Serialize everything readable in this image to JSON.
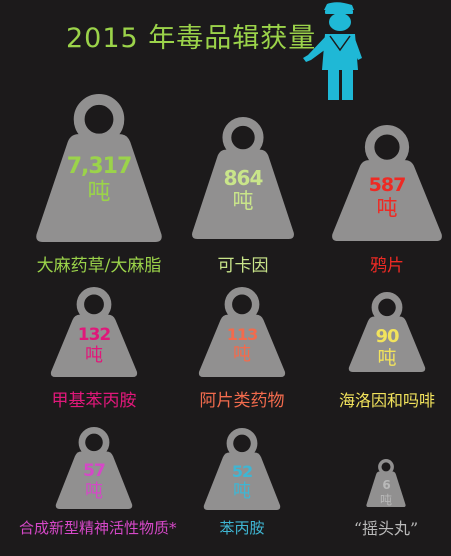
{
  "title": "2015 年毒品辑获量",
  "unit": "吨",
  "colors": {
    "background": "#1c1a1b",
    "weight": "#919090",
    "title": "#9bd34a",
    "officer": "#1fb8d6"
  },
  "icons": {
    "officer": "police-officer-icon",
    "weight": "weight-icon"
  },
  "items": [
    {
      "value": "7,317",
      "label": "大麻药草/大麻脂",
      "color": "#9bd34a"
    },
    {
      "value": "864",
      "label": "可卡因",
      "color": "#c9e58a"
    },
    {
      "value": "587",
      "label": "鸦片",
      "color": "#ee2a24"
    },
    {
      "value": "132",
      "label": "甲基苯丙胺",
      "color": "#e0187a"
    },
    {
      "value": "113",
      "label": "阿片类药物",
      "color": "#f26b4d"
    },
    {
      "value": "90",
      "label": "海洛因和吗啡",
      "color": "#f2e35c"
    },
    {
      "value": "57",
      "label": "合成新型精神活性物质*",
      "color": "#d548c7"
    },
    {
      "value": "52",
      "label": "苯丙胺",
      "color": "#3fb6d3"
    },
    {
      "value": "6",
      "label": "“摇头丸”",
      "color": "#b9b9b9"
    }
  ]
}
